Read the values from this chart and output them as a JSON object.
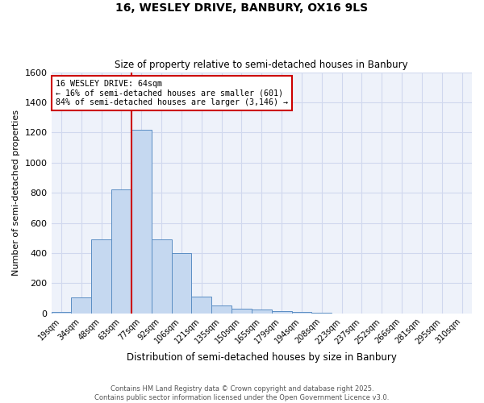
{
  "title": "16, WESLEY DRIVE, BANBURY, OX16 9LS",
  "subtitle": "Size of property relative to semi-detached houses in Banbury",
  "xlabel": "Distribution of semi-detached houses by size in Banbury",
  "ylabel": "Number of semi-detached properties",
  "categories": [
    "19sqm",
    "34sqm",
    "48sqm",
    "63sqm",
    "77sqm",
    "92sqm",
    "106sqm",
    "121sqm",
    "135sqm",
    "150sqm",
    "165sqm",
    "179sqm",
    "194sqm",
    "208sqm",
    "223sqm",
    "237sqm",
    "252sqm",
    "266sqm",
    "281sqm",
    "295sqm",
    "310sqm"
  ],
  "values": [
    10,
    105,
    490,
    825,
    1220,
    490,
    400,
    110,
    50,
    30,
    25,
    15,
    10,
    5,
    0,
    0,
    0,
    0,
    0,
    0,
    0
  ],
  "bar_color": "#c5d8f0",
  "bar_edge_color": "#5b8ec4",
  "vline_color": "#cc0000",
  "annotation_box_color": "#cc0000",
  "grid_color": "#d0d8ee",
  "bg_color": "#eef2fa",
  "ylim": [
    0,
    1600
  ],
  "yticks": [
    0,
    200,
    400,
    600,
    800,
    1000,
    1200,
    1400,
    1600
  ],
  "property_label": "16 WESLEY DRIVE: 64sqm",
  "pct_smaller": 16,
  "pct_larger": 84,
  "n_smaller": 601,
  "n_larger": 3146,
  "footer_line1": "Contains HM Land Registry data © Crown copyright and database right 2025.",
  "footer_line2": "Contains public sector information licensed under the Open Government Licence v3.0."
}
